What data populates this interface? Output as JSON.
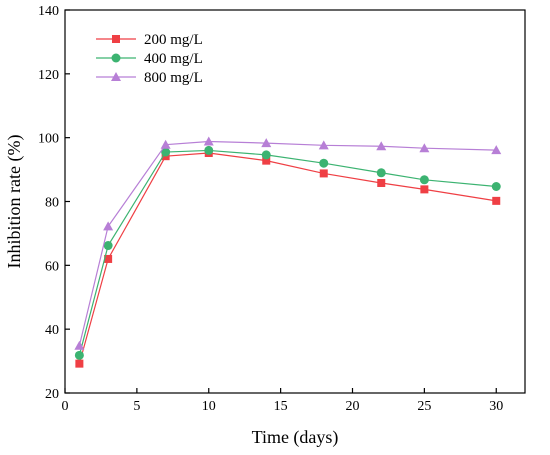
{
  "chart_data": {
    "type": "line",
    "title": "",
    "xlabel": "Time (days)",
    "ylabel": "Inhibition rate (%)",
    "xlim": [
      0,
      32
    ],
    "ylim": [
      20,
      140
    ],
    "xticks": [
      0,
      5,
      10,
      15,
      20,
      25,
      30
    ],
    "yticks": [
      20,
      40,
      60,
      80,
      100,
      120,
      140
    ],
    "x": [
      1,
      3,
      7,
      10,
      14,
      18,
      22,
      25,
      30
    ],
    "grid": false,
    "legend_position": "top-left",
    "series": [
      {
        "name": "200 mg/L",
        "color": "#ef3f44",
        "marker": "square",
        "values": [
          29.2,
          62.0,
          94.2,
          95.2,
          92.8,
          88.8,
          85.8,
          83.8,
          80.2
        ]
      },
      {
        "name": "400 mg/L",
        "color": "#3cb371",
        "marker": "circle",
        "values": [
          31.8,
          66.2,
          95.5,
          96.0,
          94.6,
          92.0,
          89.0,
          86.8,
          84.7
        ]
      },
      {
        "name": "800 mg/L",
        "color": "#b77fd6",
        "marker": "triangle",
        "values": [
          34.8,
          72.2,
          97.8,
          98.8,
          98.3,
          97.6,
          97.3,
          96.7,
          96.1
        ]
      }
    ]
  }
}
